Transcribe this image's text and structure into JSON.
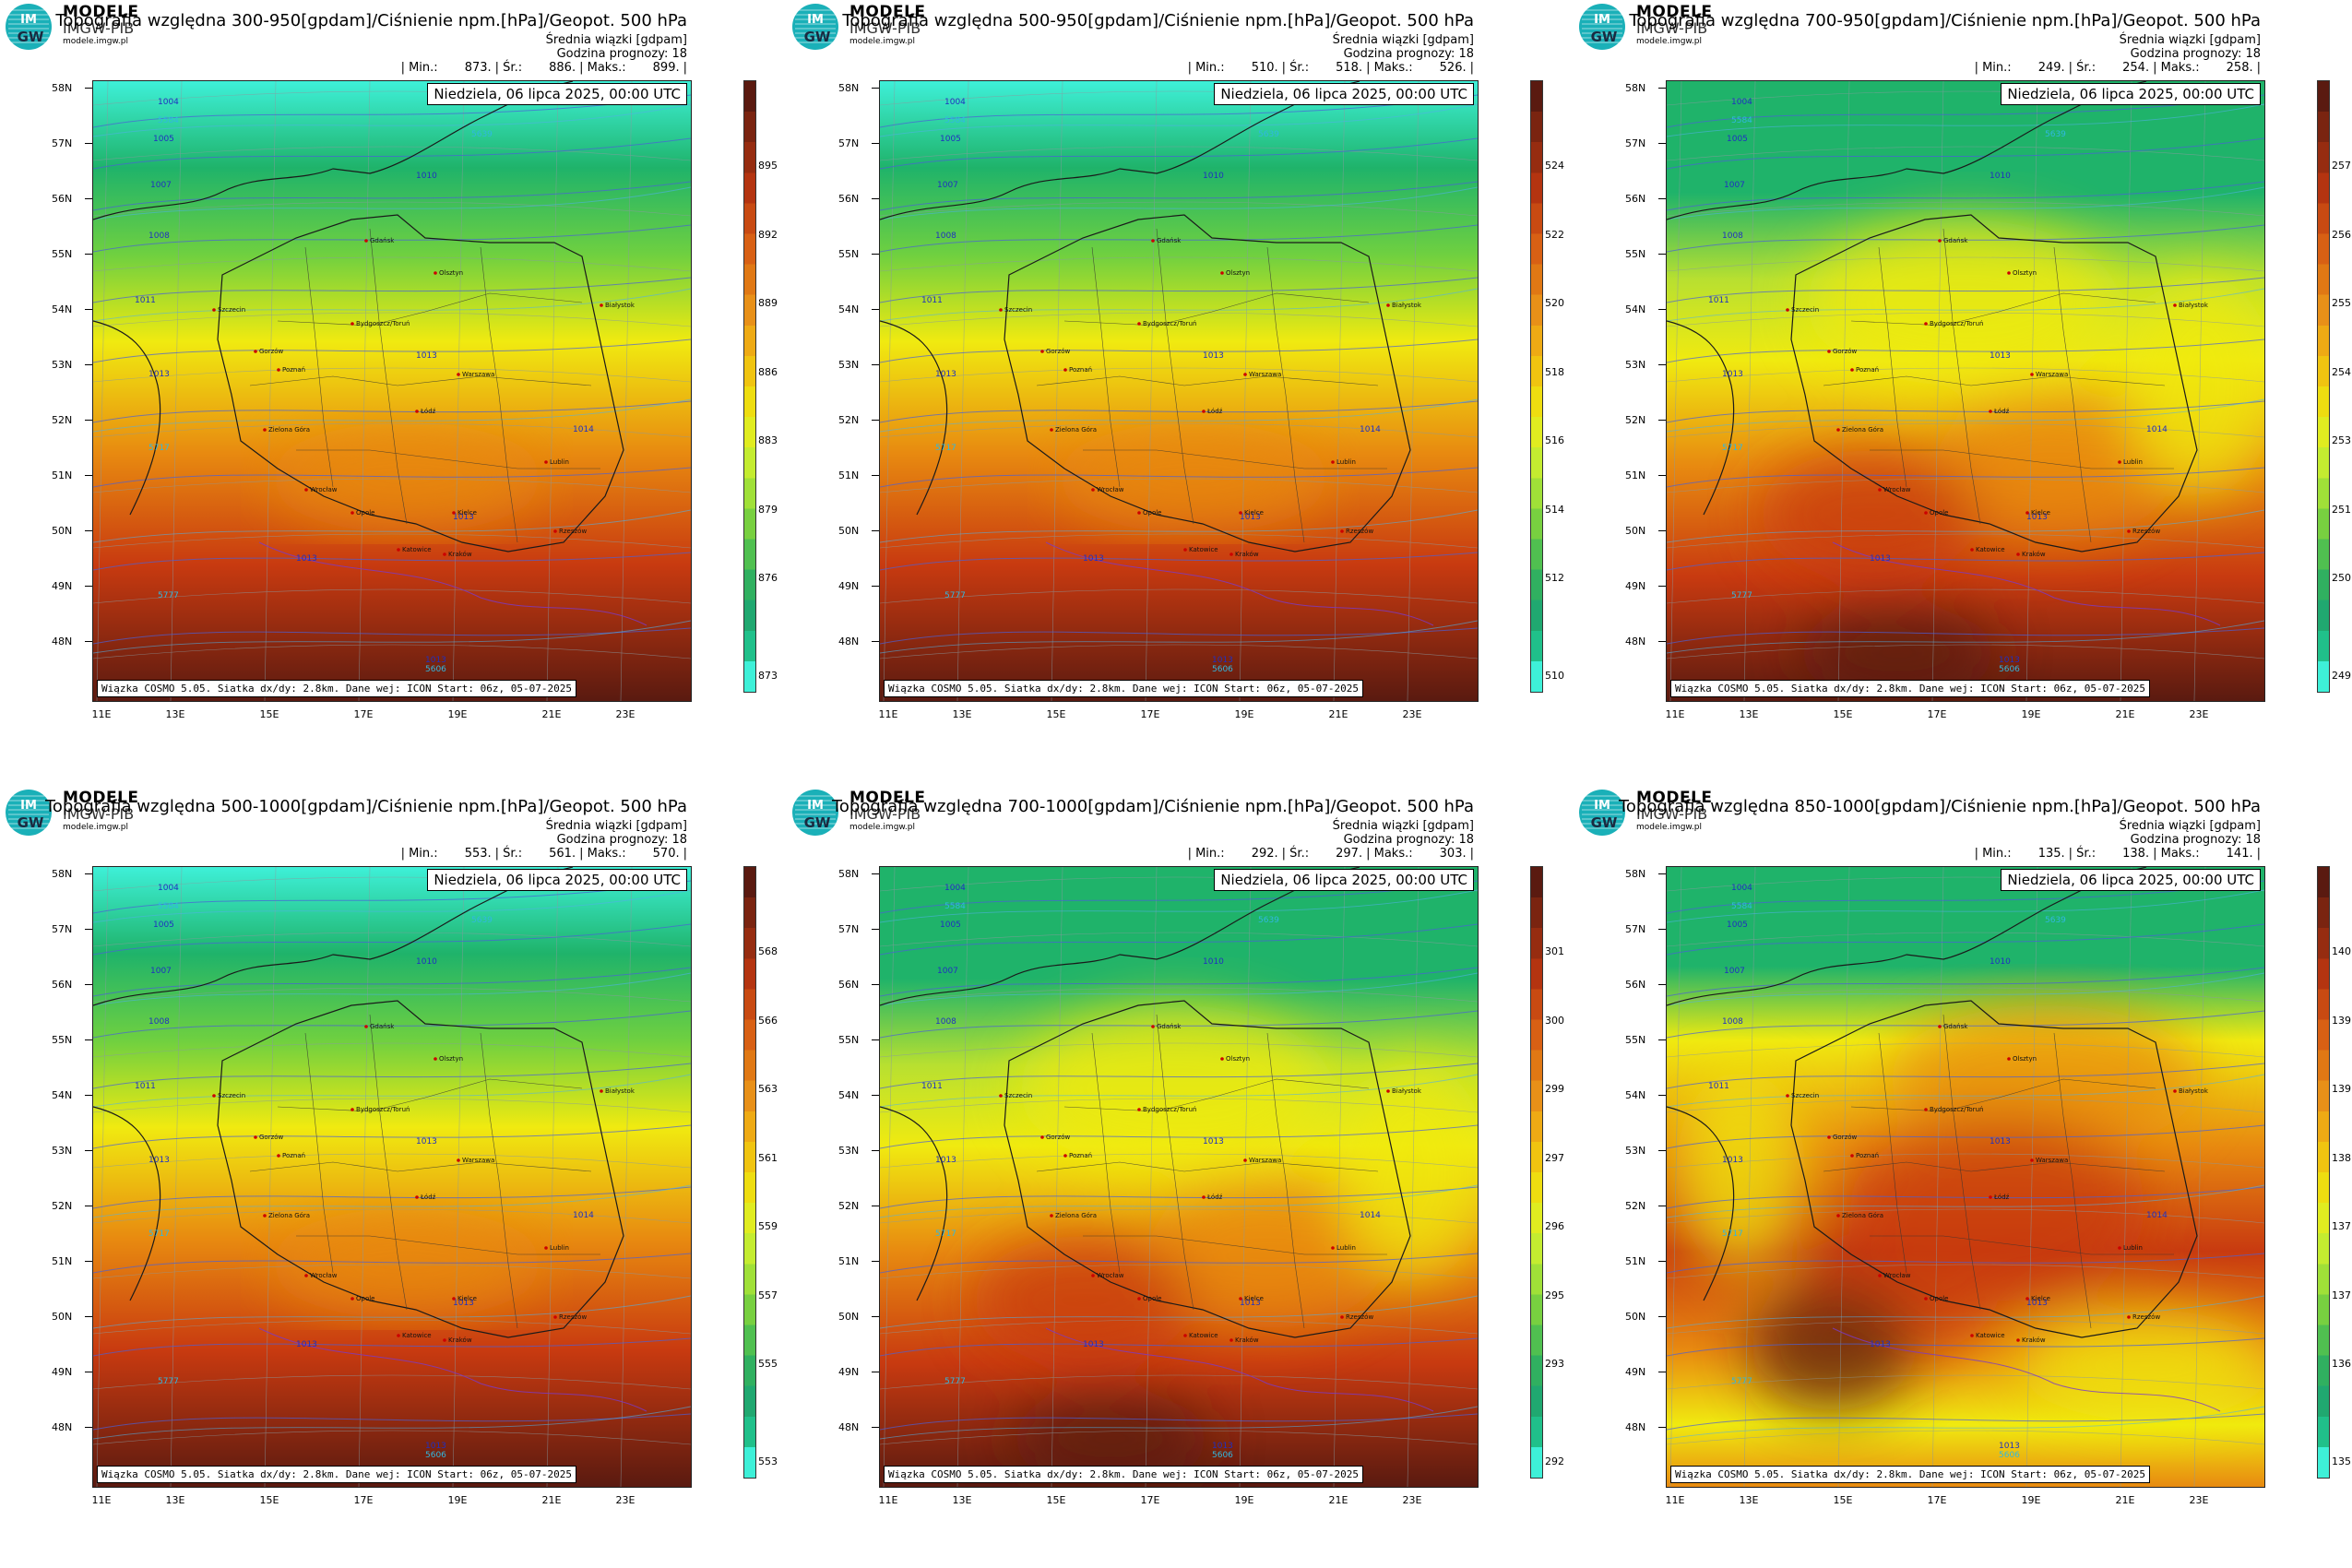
{
  "logo": {
    "brand": "MODELE",
    "sub": "IMGW-PIB",
    "url": "modele.imgw.pl",
    "glyph": "IM GW"
  },
  "date_label": "Niedziela, 06 lipca 2025, 00:00 UTC",
  "footer": "Wiązka COSMO 5.05. Siatka dx/dy: 2.8km. Dane wej: ICON Start: 06z, 05-07-2025",
  "subtitle": "Średnia wiązki [gdpam]",
  "forecast_hour": "Godzina prognozy: 18",
  "stat_labels": {
    "min": "| Min.:",
    "avg": "| Śr.:",
    "max": "| Maks.:"
  },
  "lat_labels": [
    "58N",
    "57N",
    "56N",
    "55N",
    "54N",
    "53N",
    "52N",
    "51N",
    "50N",
    "49N",
    "48N"
  ],
  "lon_labels": [
    "11E",
    "13E",
    "15E",
    "17E",
    "19E",
    "21E",
    "23E"
  ],
  "isobar_labels": [
    "1004",
    "1005",
    "1007",
    "1008",
    "1010",
    "1011",
    "1013",
    "1013",
    "1013",
    "1014",
    "1013",
    "1013"
  ],
  "geopot_labels": [
    "5584",
    "5639",
    "5717",
    "5777",
    "5606"
  ],
  "cities": [
    "Gdańsk",
    "Olsztyn",
    "Szczecin",
    "Bydgoszcz/Toruń",
    "Białystok",
    "Gorzów",
    "Poznań",
    "Warszawa",
    "Łódź",
    "Zielona Góra",
    "Lublin",
    "Wrocław",
    "Opole",
    "Kielce",
    "Katowice",
    "Kraków",
    "Rzeszów"
  ],
  "colors": {
    "low": "#3ef0d8",
    "green": "#1fb36a",
    "yellow": "#f0ea10",
    "orange": "#e88a10",
    "red": "#c83a10",
    "dark": "#5a1a10",
    "logo": "#1ab0b8"
  },
  "panels": [
    {
      "title": "Topografia względna 300-950[gpdam]/Ciśnienie npm.[hPa]/Geopot. 500 hPa",
      "stats": {
        "min": "873.",
        "avg": "886.",
        "max": "899."
      },
      "colorbar_ticks": [
        "895",
        "892",
        "889",
        "886",
        "883",
        "879",
        "876",
        "873"
      ],
      "pattern": "smooth"
    },
    {
      "title": "Topografia względna 500-950[gpdam]/Ciśnienie npm.[hPa]/Geopot. 500 hPa",
      "stats": {
        "min": "510.",
        "avg": "518.",
        "max": "526."
      },
      "colorbar_ticks": [
        "524",
        "522",
        "520",
        "518",
        "516",
        "514",
        "512",
        "510"
      ],
      "pattern": "smooth"
    },
    {
      "title": "Topografia względna 700-950[gpdam]/Ciśnienie npm.[hPa]/Geopot. 500 hPa",
      "stats": {
        "min": "249.",
        "avg": "254.",
        "max": "258."
      },
      "colorbar_ticks": [
        "257",
        "256",
        "255",
        "254",
        "253",
        "251",
        "250",
        "249"
      ],
      "pattern": "mixed"
    },
    {
      "title": "Topografia względna 500-1000[gpdam]/Ciśnienie npm.[hPa]/Geopot. 500 hPa",
      "stats": {
        "min": "553.",
        "avg": "561.",
        "max": "570."
      },
      "colorbar_ticks": [
        "568",
        "566",
        "563",
        "561",
        "559",
        "557",
        "555",
        "553"
      ],
      "pattern": "smooth"
    },
    {
      "title": "Topografia względna 700-1000[gpdam]/Ciśnienie npm.[hPa]/Geopot. 500 hPa",
      "stats": {
        "min": "292.",
        "avg": "297.",
        "max": "303."
      },
      "colorbar_ticks": [
        "301",
        "300",
        "299",
        "297",
        "296",
        "295",
        "293",
        "292"
      ],
      "pattern": "mixed"
    },
    {
      "title": "Topografia względna 850-1000[gpdam]/Ciśnienie npm.[hPa]/Geopot. 500 hPa",
      "stats": {
        "min": "135.",
        "avg": "138.",
        "max": "141."
      },
      "colorbar_ticks": [
        "140",
        "139",
        "139",
        "138",
        "137",
        "137",
        "136",
        "135"
      ],
      "pattern": "patchy"
    }
  ]
}
